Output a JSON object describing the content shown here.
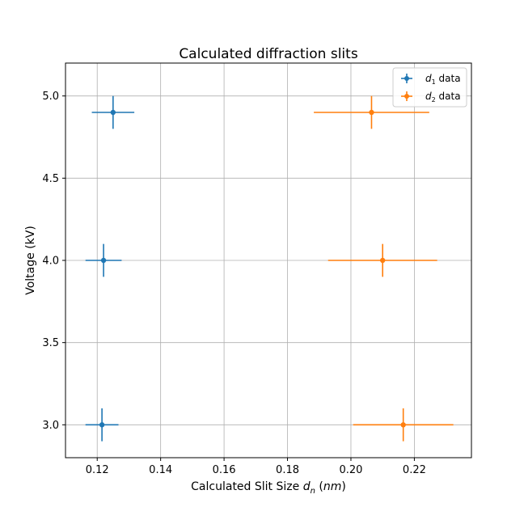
{
  "chart_data": {
    "type": "scatter",
    "title": "Calculated diffraction slits",
    "xlabel": {
      "prefix": "Calculated Slit Size ",
      "var": "d",
      "sub": "n",
      "unit_open": " (",
      "unit": "nm",
      "unit_close": ")"
    },
    "ylabel": "Voltage (kV)",
    "xlim": [
      0.11,
      0.238
    ],
    "ylim": [
      2.8,
      5.2
    ],
    "xticks": [
      0.12,
      0.14,
      0.16,
      0.18,
      0.2,
      0.22
    ],
    "xtick_labels": [
      "0.12",
      "0.14",
      "0.16",
      "0.18",
      "0.20",
      "0.22"
    ],
    "yticks": [
      3.0,
      3.5,
      4.0,
      4.5,
      5.0
    ],
    "ytick_labels": [
      "3.0",
      "3.5",
      "4.0",
      "4.5",
      "5.0"
    ],
    "grid": true,
    "legend_position": "top-right",
    "series": [
      {
        "name": {
          "var": "d",
          "sub": "1",
          "suffix": " data"
        },
        "color": "#1f77b4",
        "points": [
          {
            "x": 0.1215,
            "y": 3.0,
            "xerr": 0.0052,
            "yerr": 0.1
          },
          {
            "x": 0.122,
            "y": 4.0,
            "xerr": 0.0057,
            "yerr": 0.1
          },
          {
            "x": 0.125,
            "y": 4.9,
            "xerr": 0.0067,
            "yerr": 0.1
          }
        ]
      },
      {
        "name": {
          "var": "d",
          "sub": "2",
          "suffix": " data"
        },
        "color": "#ff7f0e",
        "points": [
          {
            "x": 0.2165,
            "y": 3.0,
            "xerr": 0.0158,
            "yerr": 0.1
          },
          {
            "x": 0.21,
            "y": 4.0,
            "xerr": 0.0172,
            "yerr": 0.1
          },
          {
            "x": 0.2065,
            "y": 4.9,
            "xerr": 0.0182,
            "yerr": 0.1
          }
        ]
      }
    ]
  }
}
